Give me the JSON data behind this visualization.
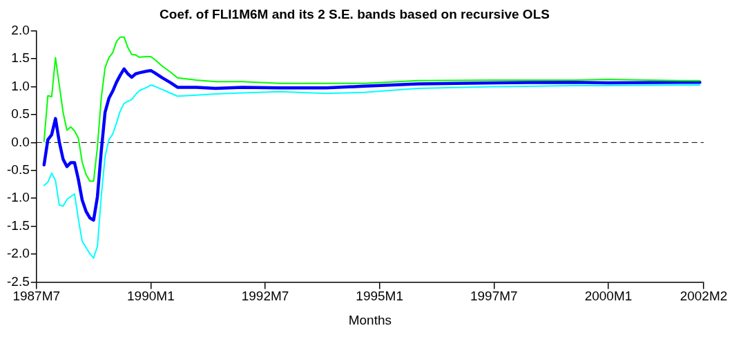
{
  "chart_data": {
    "type": "line",
    "title": "Coef. of FLI1M6M and its 2 S.E. bands based on recursive OLS",
    "xlabel": "Months",
    "x": [
      "1987-09",
      "1987-10",
      "1987-11",
      "1987-12",
      "1988-01",
      "1988-02",
      "1988-03",
      "1988-04",
      "1988-05",
      "1988-06",
      "1988-07",
      "1988-08",
      "1988-09",
      "1988-10",
      "1988-11",
      "1988-12",
      "1989-01",
      "1989-02",
      "1989-03",
      "1989-04",
      "1989-05",
      "1989-06",
      "1989-07",
      "1989-08",
      "1989-09",
      "1989-10",
      "1989-12",
      "1990-01",
      "1990-02",
      "1990-04",
      "1990-06",
      "1990-08",
      "1991-01",
      "1991-06",
      "1992-01",
      "1992-11",
      "1993-11",
      "1994-09",
      "1995-11",
      "1997-07",
      "1999-04",
      "2000-01",
      "2001-08",
      "2002-01"
    ],
    "series": [
      {
        "color": "#00ff00",
        "values": [
          0.02,
          0.84,
          0.82,
          1.52,
          1.03,
          0.54,
          0.22,
          0.28,
          0.21,
          0.08,
          -0.35,
          -0.57,
          -0.69,
          -0.69,
          -0.08,
          0.79,
          1.34,
          1.52,
          1.61,
          1.81,
          1.89,
          1.89,
          1.7,
          1.58,
          1.57,
          1.53,
          1.54,
          1.54,
          1.49,
          1.37,
          1.27,
          1.16,
          1.12,
          1.09,
          1.09,
          1.06,
          1.06,
          1.06,
          1.11,
          1.12,
          1.12,
          1.13,
          1.11,
          1.11
        ]
      },
      {
        "color": "#00ffff",
        "values": [
          -0.77,
          -0.71,
          -0.55,
          -0.68,
          -1.12,
          -1.14,
          -1.02,
          -0.97,
          -0.92,
          -1.37,
          -1.77,
          -1.88,
          -1.99,
          -2.07,
          -1.86,
          -0.97,
          -0.26,
          0.05,
          0.15,
          0.35,
          0.57,
          0.7,
          0.74,
          0.77,
          0.86,
          0.93,
          0.99,
          1.03,
          1.01,
          0.95,
          0.89,
          0.83,
          0.85,
          0.87,
          0.89,
          0.91,
          0.88,
          0.9,
          0.97,
          1.0,
          1.02,
          1.02,
          1.03,
          1.03
        ]
      },
      {
        "color": "#0000ff",
        "values": [
          -0.4,
          0.05,
          0.14,
          0.43,
          0.01,
          -0.3,
          -0.43,
          -0.36,
          -0.36,
          -0.66,
          -1.03,
          -1.23,
          -1.35,
          -1.39,
          -0.97,
          -0.16,
          0.54,
          0.79,
          0.92,
          1.08,
          1.21,
          1.32,
          1.23,
          1.17,
          1.23,
          1.25,
          1.28,
          1.29,
          1.25,
          1.16,
          1.08,
          0.99,
          0.99,
          0.97,
          0.99,
          0.98,
          0.98,
          1.01,
          1.05,
          1.07,
          1.08,
          1.07,
          1.08,
          1.08
        ]
      }
    ],
    "xlim": [
      "1987-07",
      "2002-02"
    ],
    "xticks": [
      {
        "value": "1987-07",
        "label": "1987M7"
      },
      {
        "value": "1990-01",
        "label": "1990M1"
      },
      {
        "value": "1992-07",
        "label": "1992M7"
      },
      {
        "value": "1995-01",
        "label": "1995M1"
      },
      {
        "value": "1997-07",
        "label": "1997M7"
      },
      {
        "value": "2000-01",
        "label": "2000M1"
      },
      {
        "value": "2002-02",
        "label": "2002M2"
      }
    ],
    "ylim": [
      -2.5,
      2.0
    ],
    "yticks": [
      {
        "value": -2.5,
        "label": "-2.5"
      },
      {
        "value": -2.0,
        "label": "-2.0"
      },
      {
        "value": -1.5,
        "label": "-1.5"
      },
      {
        "value": -1.0,
        "label": "-1.0"
      },
      {
        "value": -0.5,
        "label": "-0.5"
      },
      {
        "value": 0,
        "label": "0.0"
      },
      {
        "value": 0.5,
        "label": "0.5"
      },
      {
        "value": 1.0,
        "label": "1.0"
      },
      {
        "value": 1.5,
        "label": "1.5"
      },
      {
        "value": 2.0,
        "label": "2.0"
      }
    ],
    "ref_lines": [
      {
        "axis": "y",
        "value": 0,
        "line_style": "dashed",
        "color": "#000000"
      }
    ],
    "grid": false,
    "legend": false,
    "marker": "none",
    "line_style": "solid"
  }
}
